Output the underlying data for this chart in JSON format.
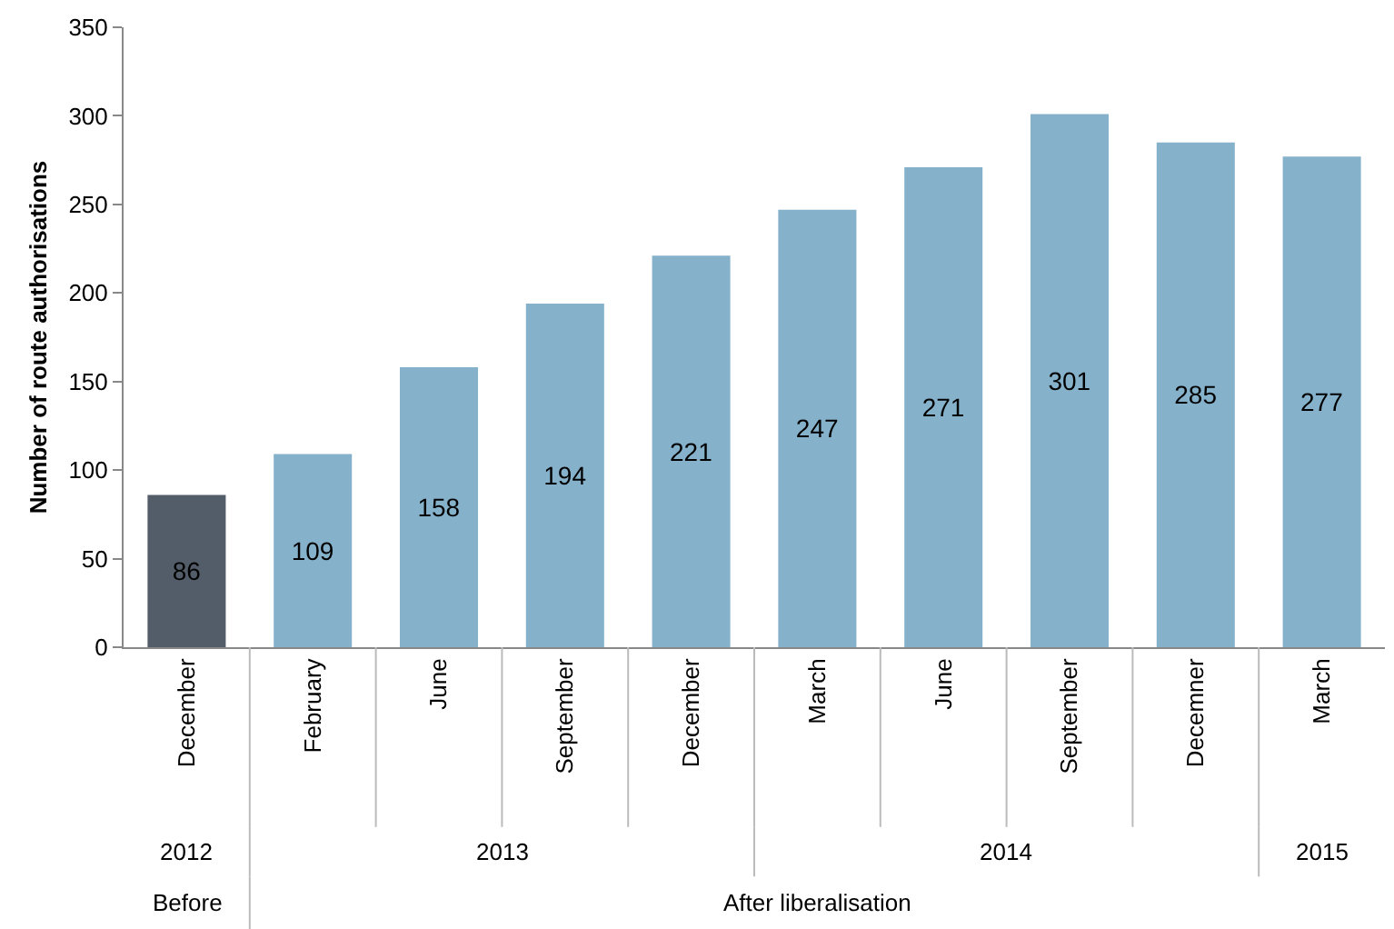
{
  "chart_data": {
    "type": "bar",
    "ylabel": "Number of route authorisations",
    "categories": [
      "December",
      "February",
      "June",
      "September",
      "December",
      "March",
      "June",
      "September",
      "Decemner",
      "March"
    ],
    "values": [
      86,
      109,
      158,
      194,
      221,
      247,
      271,
      301,
      285,
      277
    ],
    "colors": [
      "#535d69",
      "#85b1cb",
      "#85b1cb",
      "#85b1cb",
      "#85b1cb",
      "#85b1cb",
      "#85b1cb",
      "#85b1cb",
      "#85b1cb",
      "#85b1cb"
    ],
    "ylim": [
      0,
      350
    ],
    "yticks": [
      0,
      50,
      100,
      150,
      200,
      250,
      300,
      350
    ],
    "grid": false,
    "data_labels": true,
    "annotations": [
      "2012",
      "2013",
      "2014",
      "2015",
      "Before",
      "After liberalisation"
    ]
  }
}
